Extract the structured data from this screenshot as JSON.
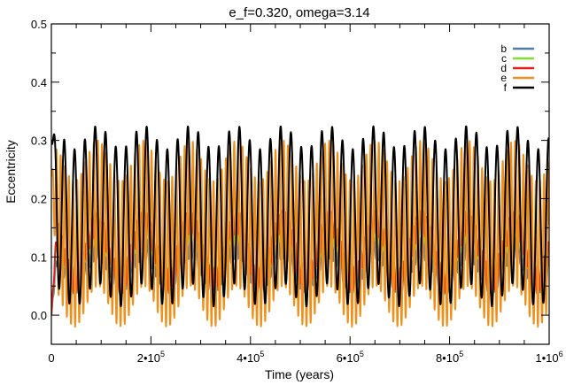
{
  "chart_data": {
    "type": "line",
    "title": "e_f=0.320, omega=3.14",
    "xlabel": "Time (years)",
    "ylabel": "Eccentricity",
    "xlim": [
      0,
      1000000
    ],
    "ylim": [
      -0.05,
      0.5
    ],
    "grid": false,
    "legend_position": "top-right",
    "x_ticks": [
      {
        "value": 0,
        "label": "0",
        "sup": ""
      },
      {
        "value": 200000,
        "label": "2•10",
        "sup": "5"
      },
      {
        "value": 400000,
        "label": "4•10",
        "sup": "5"
      },
      {
        "value": 600000,
        "label": "6•10",
        "sup": "5"
      },
      {
        "value": 800000,
        "label": "8•10",
        "sup": "5"
      },
      {
        "value": 1000000,
        "label": "1•10",
        "sup": "6"
      }
    ],
    "y_ticks": [
      {
        "value": 0.0,
        "label": "0.0"
      },
      {
        "value": 0.1,
        "label": "0.1"
      },
      {
        "value": 0.2,
        "label": "0.2"
      },
      {
        "value": 0.3,
        "label": "0.3"
      },
      {
        "value": 0.4,
        "label": "0.4"
      },
      {
        "value": 0.5,
        "label": "0.5"
      }
    ],
    "series": [
      {
        "name": "b",
        "color": "#4f7fa8",
        "model": {
          "base": 0.085,
          "slow_amp": 0.03,
          "slow_period": 93000,
          "fast_amp": 0.018,
          "fast_period": 6600,
          "start_value": 0.0
        }
      },
      {
        "name": "c",
        "color": "#7fe030",
        "model": {
          "base": 0.105,
          "slow_amp": 0.04,
          "slow_period": 93000,
          "fast_amp": 0.018,
          "fast_period": 6600,
          "start_value": 0.0
        }
      },
      {
        "name": "d",
        "color": "#e0201a",
        "model": {
          "base": 0.11,
          "slow_amp": 0.05,
          "slow_period": 93000,
          "fast_amp": 0.02,
          "fast_period": 6600,
          "start_value": 0.0
        }
      },
      {
        "name": "e",
        "color": "#f0901c",
        "model": {
          "base": 0.14,
          "slow_amp": 0.035,
          "slow_period": 93000,
          "fast_amp": 0.125,
          "fast_period": 8300,
          "start_value": 0.24
        }
      },
      {
        "name": "f",
        "color": "#000000",
        "model": {
          "base": 0.17,
          "slow_amp": 0.02,
          "slow_period": 93000,
          "fast_amp": 0.135,
          "fast_period": 20700,
          "start_value": 0.3
        }
      }
    ]
  }
}
